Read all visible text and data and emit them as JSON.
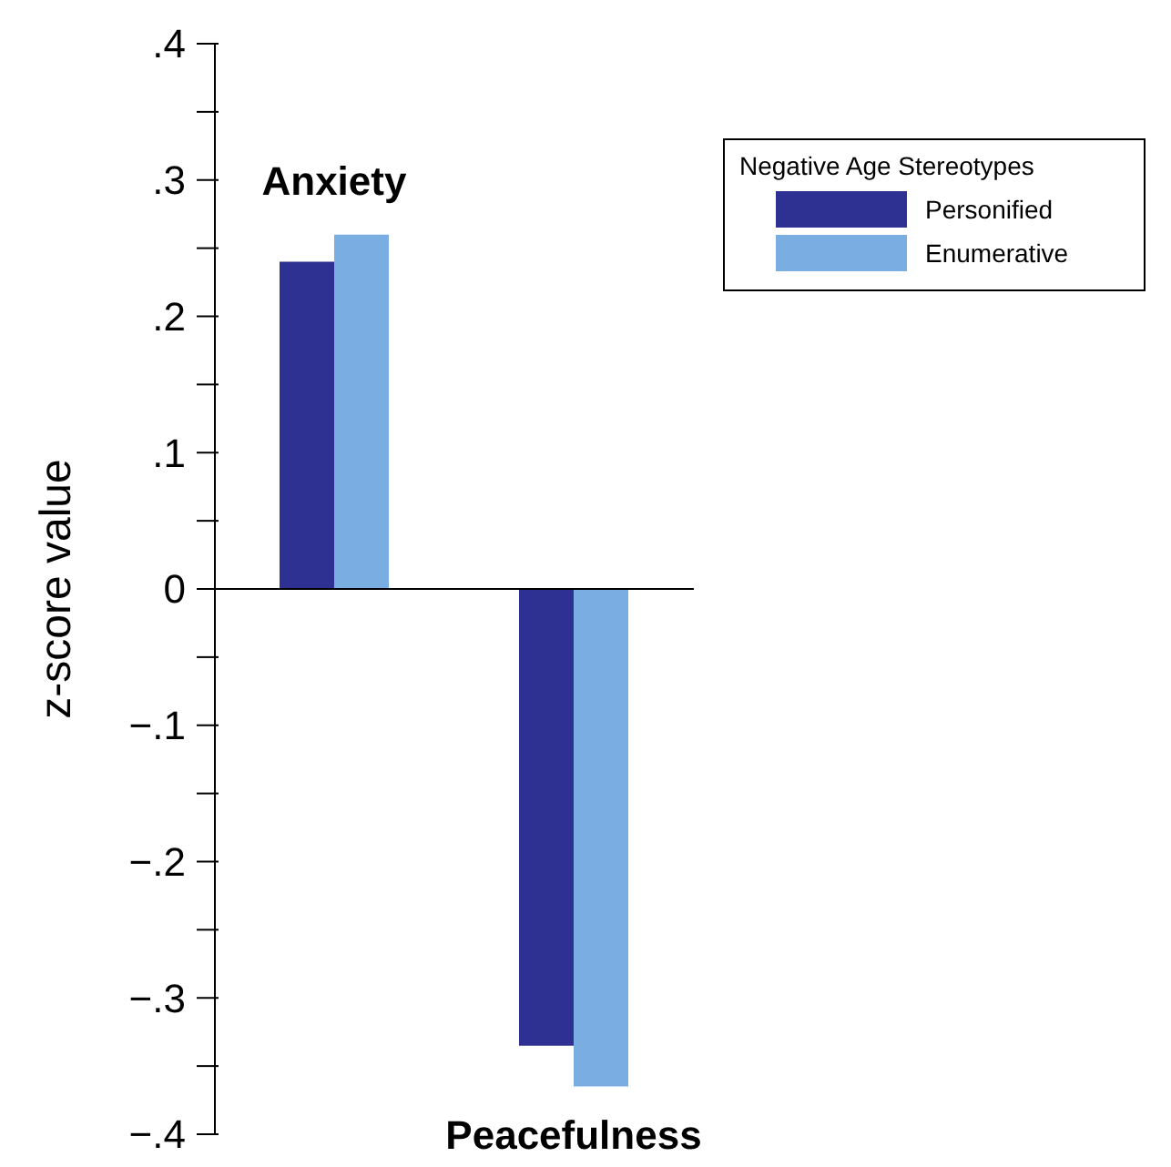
{
  "chart_data": {
    "type": "bar",
    "ylabel": "z-score value",
    "legend_title": "Negative Age Stereotypes",
    "categories": [
      "Anxiety",
      "Peacefulness"
    ],
    "series": [
      {
        "name": "Personified",
        "color": "#2e3192",
        "values": [
          0.24,
          -0.335
        ]
      },
      {
        "name": "Enumerative",
        "color": "#7aaee3",
        "values": [
          0.26,
          -0.365
        ]
      }
    ],
    "ylim": [
      -0.4,
      0.4
    ],
    "yticks": [
      {
        "value": -0.4,
        "label": "−.4"
      },
      {
        "value": -0.35,
        "label": null
      },
      {
        "value": -0.3,
        "label": "−.3"
      },
      {
        "value": -0.25,
        "label": null
      },
      {
        "value": -0.2,
        "label": "−.2"
      },
      {
        "value": -0.15,
        "label": null
      },
      {
        "value": -0.1,
        "label": "−.1"
      },
      {
        "value": -0.05,
        "label": null
      },
      {
        "value": 0,
        "label": "0"
      },
      {
        "value": 0.05,
        "label": null
      },
      {
        "value": 0.1,
        "label": ".1"
      },
      {
        "value": 0.15,
        "label": null
      },
      {
        "value": 0.2,
        "label": ".2"
      },
      {
        "value": 0.25,
        "label": null
      },
      {
        "value": 0.3,
        "label": ".3"
      },
      {
        "value": 0.35,
        "label": null
      },
      {
        "value": 0.4,
        "label": ".4"
      }
    ],
    "legend": "top right"
  }
}
